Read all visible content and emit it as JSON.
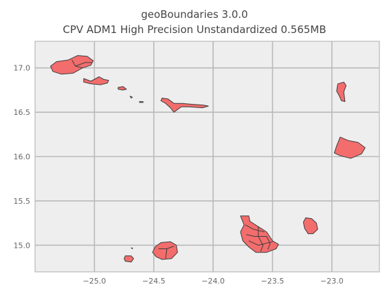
{
  "title": "geoBoundaries 3.0.0",
  "subtitle": "CPV ADM1 High Precision Unstandardized 0.565MB",
  "chart_data": {
    "type": "map",
    "xlim": [
      -25.5,
      -22.6
    ],
    "ylim": [
      14.7,
      17.3
    ],
    "x_ticks": [
      -25.0,
      -24.5,
      -24.0,
      -23.5,
      -23.0
    ],
    "x_tick_labels": [
      "−25.0",
      "−24.5",
      "−24.0",
      "−23.5",
      "−23.0"
    ],
    "y_ticks": [
      15.0,
      15.5,
      16.0,
      16.5,
      17.0
    ],
    "y_tick_labels": [
      "15.0",
      "15.5",
      "16.0",
      "16.5",
      "17.0"
    ],
    "grid": true,
    "fill_color": "#f36d6d",
    "edge_color": "#3c3c3c",
    "background_color": "#eeeeee",
    "islands": [
      {
        "id": "santo-antao",
        "coords": [
          [
            -25.37,
            17.02
          ],
          [
            -25.32,
            17.07
          ],
          [
            -25.22,
            17.09
          ],
          [
            -25.14,
            17.14
          ],
          [
            -25.06,
            17.13
          ],
          [
            -25.01,
            17.08
          ],
          [
            -25.03,
            17.03
          ],
          [
            -25.1,
            17.0
          ],
          [
            -25.18,
            16.94
          ],
          [
            -25.28,
            16.93
          ],
          [
            -25.35,
            16.96
          ]
        ]
      },
      {
        "id": "sao-vicente",
        "coords": [
          [
            -25.09,
            16.88
          ],
          [
            -25.03,
            16.85
          ],
          [
            -24.96,
            16.9
          ],
          [
            -24.92,
            16.87
          ],
          [
            -24.88,
            16.86
          ],
          [
            -24.89,
            16.83
          ],
          [
            -24.95,
            16.81
          ],
          [
            -25.03,
            16.82
          ],
          [
            -25.09,
            16.84
          ]
        ]
      },
      {
        "id": "santa-luzia",
        "coords": [
          [
            -24.8,
            16.78
          ],
          [
            -24.76,
            16.79
          ],
          [
            -24.73,
            16.76
          ],
          [
            -24.76,
            16.75
          ],
          [
            -24.8,
            16.76
          ]
        ]
      },
      {
        "id": "branco",
        "coords": [
          [
            -24.7,
            16.68
          ],
          [
            -24.68,
            16.67
          ],
          [
            -24.69,
            16.66
          ]
        ]
      },
      {
        "id": "raso",
        "coords": [
          [
            -24.62,
            16.62
          ],
          [
            -24.59,
            16.62
          ],
          [
            -24.59,
            16.61
          ],
          [
            -24.62,
            16.61
          ]
        ]
      },
      {
        "id": "sao-nicolau",
        "coords": [
          [
            -24.43,
            16.66
          ],
          [
            -24.38,
            16.65
          ],
          [
            -24.33,
            16.6
          ],
          [
            -24.26,
            16.6
          ],
          [
            -24.18,
            16.59
          ],
          [
            -24.08,
            16.58
          ],
          [
            -24.04,
            16.57
          ],
          [
            -24.09,
            16.55
          ],
          [
            -24.2,
            16.56
          ],
          [
            -24.27,
            16.56
          ],
          [
            -24.33,
            16.5
          ],
          [
            -24.36,
            16.55
          ],
          [
            -24.4,
            16.6
          ],
          [
            -24.44,
            16.63
          ]
        ]
      },
      {
        "id": "sal",
        "coords": [
          [
            -22.95,
            16.82
          ],
          [
            -22.9,
            16.84
          ],
          [
            -22.88,
            16.8
          ],
          [
            -22.9,
            16.73
          ],
          [
            -22.89,
            16.62
          ],
          [
            -22.92,
            16.63
          ],
          [
            -22.94,
            16.69
          ],
          [
            -22.96,
            16.74
          ]
        ]
      },
      {
        "id": "boa-vista",
        "coords": [
          [
            -22.93,
            16.22
          ],
          [
            -22.86,
            16.18
          ],
          [
            -22.78,
            16.16
          ],
          [
            -22.72,
            16.1
          ],
          [
            -22.75,
            16.03
          ],
          [
            -22.84,
            15.98
          ],
          [
            -22.93,
            16.01
          ],
          [
            -22.98,
            16.04
          ],
          [
            -22.96,
            16.12
          ]
        ]
      },
      {
        "id": "maio",
        "coords": [
          [
            -23.22,
            15.31
          ],
          [
            -23.17,
            15.3
          ],
          [
            -23.13,
            15.25
          ],
          [
            -23.12,
            15.18
          ],
          [
            -23.16,
            15.13
          ],
          [
            -23.2,
            15.13
          ],
          [
            -23.23,
            15.19
          ],
          [
            -23.24,
            15.26
          ]
        ]
      },
      {
        "id": "santiago",
        "coords": [
          [
            -23.77,
            15.33
          ],
          [
            -23.7,
            15.33
          ],
          [
            -23.69,
            15.27
          ],
          [
            -23.62,
            15.21
          ],
          [
            -23.55,
            15.15
          ],
          [
            -23.5,
            15.05
          ],
          [
            -23.45,
            15.01
          ],
          [
            -23.47,
            14.96
          ],
          [
            -23.55,
            14.92
          ],
          [
            -23.64,
            14.92
          ],
          [
            -23.7,
            14.98
          ],
          [
            -23.75,
            15.05
          ],
          [
            -23.77,
            15.15
          ],
          [
            -23.74,
            15.23
          ]
        ]
      },
      {
        "id": "fogo",
        "coords": [
          [
            -24.49,
            14.98
          ],
          [
            -24.44,
            15.03
          ],
          [
            -24.36,
            15.04
          ],
          [
            -24.31,
            15.0
          ],
          [
            -24.3,
            14.92
          ],
          [
            -24.35,
            14.85
          ],
          [
            -24.43,
            14.84
          ],
          [
            -24.48,
            14.87
          ],
          [
            -24.51,
            14.92
          ]
        ]
      },
      {
        "id": "brava",
        "coords": [
          [
            -24.74,
            14.88
          ],
          [
            -24.69,
            14.88
          ],
          [
            -24.67,
            14.85
          ],
          [
            -24.69,
            14.81
          ],
          [
            -24.74,
            14.82
          ],
          [
            -24.75,
            14.85
          ]
        ]
      },
      {
        "id": "ilheus-secos",
        "coords": [
          [
            -24.69,
            14.97
          ],
          [
            -24.68,
            14.97
          ],
          [
            -24.68,
            14.96
          ]
        ]
      }
    ],
    "internal_borders": [
      [
        [
          -25.19,
          17.09
        ],
        [
          -25.16,
          17.02
        ],
        [
          -25.1,
          17.0
        ]
      ],
      [
        [
          -25.16,
          17.02
        ],
        [
          -25.08,
          17.06
        ],
        [
          -25.02,
          17.06
        ]
      ],
      [
        [
          -23.73,
          15.23
        ],
        [
          -23.66,
          15.18
        ],
        [
          -23.57,
          15.15
        ]
      ],
      [
        [
          -23.72,
          15.12
        ],
        [
          -23.65,
          15.1
        ],
        [
          -23.55,
          15.1
        ]
      ],
      [
        [
          -23.7,
          15.05
        ],
        [
          -23.62,
          15.0
        ],
        [
          -23.56,
          15.02
        ],
        [
          -23.5,
          15.04
        ]
      ],
      [
        [
          -23.62,
          15.21
        ],
        [
          -23.62,
          15.1
        ],
        [
          -23.58,
          15.0
        ],
        [
          -23.6,
          14.93
        ]
      ],
      [
        [
          -23.55,
          15.1
        ],
        [
          -23.52,
          15.02
        ],
        [
          -23.54,
          14.95
        ]
      ],
      [
        [
          -24.46,
          14.96
        ],
        [
          -24.39,
          14.96
        ],
        [
          -24.33,
          14.99
        ]
      ],
      [
        [
          -24.39,
          14.96
        ],
        [
          -24.4,
          14.85
        ]
      ]
    ]
  }
}
